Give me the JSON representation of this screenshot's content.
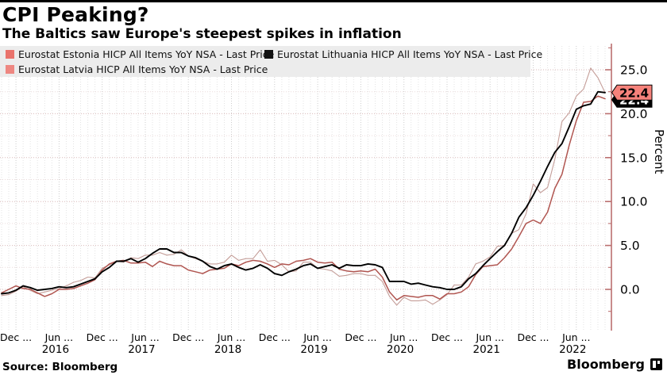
{
  "header": {
    "title": "CPI Peaking?",
    "subtitle": "The Baltics saw Europe's steepest spikes in inflation"
  },
  "chart_data": {
    "type": "line",
    "title": "CPI Peaking?",
    "subtitle": "The Baltics saw Europe's steepest spikes in inflation",
    "ylabel": "Percent",
    "ylim": [
      -4.7,
      27.5
    ],
    "grid": true,
    "legend_position": "top",
    "x_months": [
      "2015-10",
      "2015-11",
      "2015-12",
      "2016-01",
      "2016-02",
      "2016-03",
      "2016-04",
      "2016-05",
      "2016-06",
      "2016-07",
      "2016-08",
      "2016-09",
      "2016-10",
      "2016-11",
      "2016-12",
      "2017-01",
      "2017-02",
      "2017-03",
      "2017-04",
      "2017-05",
      "2017-06",
      "2017-07",
      "2017-08",
      "2017-09",
      "2017-10",
      "2017-11",
      "2017-12",
      "2018-01",
      "2018-02",
      "2018-03",
      "2018-04",
      "2018-05",
      "2018-06",
      "2018-07",
      "2018-08",
      "2018-09",
      "2018-10",
      "2018-11",
      "2018-12",
      "2019-01",
      "2019-02",
      "2019-03",
      "2019-04",
      "2019-05",
      "2019-06",
      "2019-07",
      "2019-08",
      "2019-09",
      "2019-10",
      "2019-11",
      "2019-12",
      "2020-01",
      "2020-02",
      "2020-03",
      "2020-04",
      "2020-05",
      "2020-06",
      "2020-07",
      "2020-08",
      "2020-09",
      "2020-10",
      "2020-11",
      "2020-12",
      "2021-01",
      "2021-02",
      "2021-03",
      "2021-04",
      "2021-05",
      "2021-06",
      "2021-07",
      "2021-08",
      "2021-09",
      "2021-10",
      "2021-11",
      "2021-12",
      "2022-01",
      "2022-02",
      "2022-03",
      "2022-04",
      "2022-05",
      "2022-06",
      "2022-07",
      "2022-08",
      "2022-09",
      "2022-10"
    ],
    "series": [
      {
        "id": "estonia",
        "name": "Eurostat Estonia HICP All Items YoY NSA - Last Price",
        "color": "#c49d98",
        "swatch": "#e9736c",
        "values": [
          -0.7,
          -0.6,
          -0.2,
          0.3,
          -0.1,
          -0.5,
          -0.3,
          -0.1,
          0.1,
          0.4,
          0.8,
          1.0,
          1.4,
          1.3,
          2.4,
          2.8,
          3.2,
          3.1,
          3.6,
          3.5,
          3.9,
          3.9,
          4.2,
          3.9,
          4.0,
          4.5,
          3.8,
          3.5,
          3.2,
          2.9,
          2.9,
          3.1,
          3.9,
          3.3,
          3.5,
          3.5,
          4.5,
          3.2,
          3.3,
          2.8,
          2.0,
          2.1,
          3.1,
          3.1,
          2.4,
          2.3,
          2.1,
          1.5,
          1.6,
          1.8,
          1.8,
          1.6,
          1.6,
          0.9,
          -0.8,
          -1.8,
          -0.9,
          -1.3,
          -1.3,
          -1.2,
          -1.7,
          -1.2,
          -0.6,
          0.5,
          0.5,
          1.4,
          2.9,
          3.2,
          3.7,
          4.9,
          5.0,
          6.4,
          6.8,
          8.6,
          12.0,
          11.0,
          11.6,
          14.8,
          19.1,
          20.1,
          22.0,
          22.8,
          25.2,
          24.1,
          22.4
        ]
      },
      {
        "id": "latvia",
        "name": "Eurostat Latvia HICP All Items YoY NSA - Last Price",
        "color": "#b05550",
        "swatch": "#ee8781",
        "values": [
          -0.4,
          0.0,
          0.4,
          0.1,
          0.0,
          -0.4,
          -0.8,
          -0.5,
          0.0,
          0.0,
          0.1,
          0.4,
          0.7,
          1.1,
          2.2,
          2.9,
          3.2,
          3.3,
          3.0,
          3.0,
          3.1,
          2.6,
          3.2,
          2.9,
          2.7,
          2.7,
          2.2,
          2.0,
          1.8,
          2.2,
          2.3,
          2.4,
          2.9,
          2.7,
          3.1,
          3.3,
          3.2,
          2.9,
          2.5,
          2.9,
          2.8,
          3.2,
          3.3,
          3.5,
          3.1,
          3.0,
          3.1,
          2.3,
          2.1,
          2.0,
          2.1,
          2.0,
          2.3,
          1.4,
          -0.3,
          -1.2,
          -0.7,
          -0.8,
          -0.9,
          -0.7,
          -0.7,
          -1.1,
          -0.5,
          -0.5,
          -0.3,
          0.3,
          1.7,
          2.6,
          2.7,
          2.8,
          3.6,
          4.6,
          6.0,
          7.5,
          7.9,
          7.5,
          8.8,
          11.5,
          13.1,
          16.4,
          19.2,
          21.3,
          21.4,
          22.0,
          21.7
        ]
      },
      {
        "id": "lithuania",
        "name": "Eurostat Lithuania HICP All Items YoY NSA - Last Price",
        "color": "#000000",
        "swatch": "#111111",
        "values": [
          -0.5,
          -0.4,
          -0.1,
          0.4,
          0.2,
          -0.1,
          0.0,
          0.1,
          0.3,
          0.2,
          0.3,
          0.6,
          0.9,
          1.2,
          2.0,
          2.5,
          3.2,
          3.2,
          3.5,
          3.1,
          3.5,
          4.1,
          4.6,
          4.6,
          4.2,
          4.2,
          3.8,
          3.6,
          3.2,
          2.6,
          2.3,
          2.7,
          2.9,
          2.5,
          2.2,
          2.4,
          2.8,
          2.4,
          1.8,
          1.6,
          2.0,
          2.3,
          2.7,
          2.9,
          2.4,
          2.6,
          2.8,
          2.4,
          2.8,
          2.7,
          2.7,
          2.9,
          2.8,
          2.5,
          0.9,
          0.9,
          0.9,
          0.6,
          0.7,
          0.5,
          0.3,
          0.2,
          0.0,
          0.0,
          0.3,
          1.2,
          1.8,
          2.7,
          3.5,
          4.3,
          5.0,
          6.4,
          8.2,
          9.3,
          10.7,
          12.3,
          14.0,
          15.6,
          16.6,
          18.5,
          20.5,
          20.9,
          21.1,
          22.5,
          22.4
        ]
      }
    ],
    "y_ticks": [
      0,
      5,
      10,
      15,
      20,
      25
    ],
    "y_tick_labels": [
      "0.0",
      "5.0",
      "10.0",
      "15.0",
      "20.0",
      "25.0"
    ],
    "x_ticks": [
      {
        "label": "Dec ...",
        "i": 2
      },
      {
        "label": "Jun ...",
        "i": 8
      },
      {
        "label": "Dec ...",
        "i": 14
      },
      {
        "label": "Jun ...",
        "i": 20
      },
      {
        "label": "Dec ...",
        "i": 26
      },
      {
        "label": "Jun ...",
        "i": 32
      },
      {
        "label": "Dec ...",
        "i": 38
      },
      {
        "label": "Jun ...",
        "i": 44
      },
      {
        "label": "Dec ...",
        "i": 50
      },
      {
        "label": "Jun ...",
        "i": 56
      },
      {
        "label": "Dec ...",
        "i": 62
      },
      {
        "label": "Jun ...",
        "i": 68
      },
      {
        "label": "Dec ...",
        "i": 74
      },
      {
        "label": "Jun ...",
        "i": 80
      }
    ],
    "year_ticks": [
      {
        "label": "2016",
        "i": 7.5
      },
      {
        "label": "2017",
        "i": 19.5
      },
      {
        "label": "2018",
        "i": 31.5
      },
      {
        "label": "2019",
        "i": 43.5
      },
      {
        "label": "2020",
        "i": 55.5
      },
      {
        "label": "2021",
        "i": 67.5
      },
      {
        "label": "2022",
        "i": 79.5
      }
    ],
    "last_price_label": {
      "value": "22.4",
      "tag_color": "#f5827b",
      "secondary_tag_color": "#000000"
    },
    "axis_color": "#bb6f6f"
  },
  "footer": {
    "source": "Source: Bloomberg",
    "brand": "Bloomberg"
  }
}
